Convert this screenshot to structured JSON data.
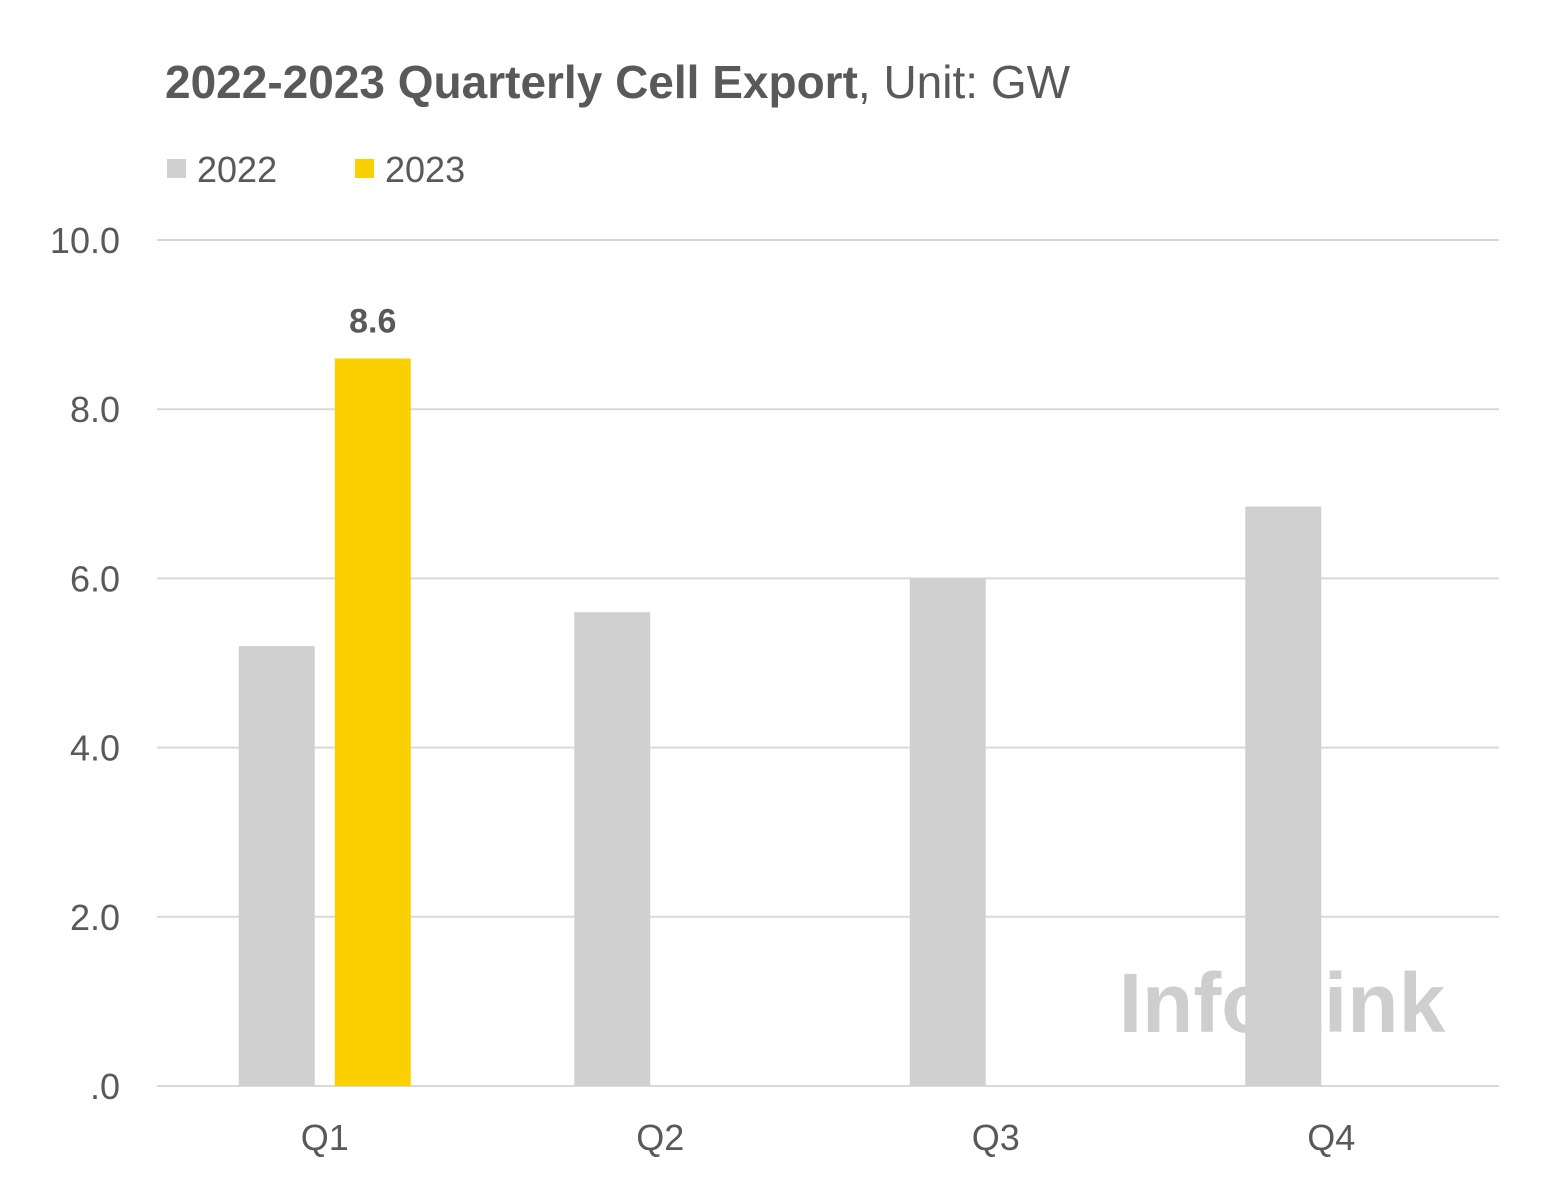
{
  "chart_data": {
    "type": "bar",
    "title_bold": "2022-2023 Quarterly Cell Export",
    "title_rest": ", Unit: GW",
    "categories": [
      "Q1",
      "Q2",
      "Q3",
      "Q4"
    ],
    "series": [
      {
        "name": "2022",
        "color": "#d1d0d1",
        "values": [
          5.2,
          5.6,
          6.0,
          6.85
        ]
      },
      {
        "name": "2023",
        "color": "#fad000",
        "values": [
          8.6,
          null,
          null,
          null
        ]
      }
    ],
    "data_labels": [
      {
        "series": "2023",
        "category": "Q1",
        "text": "8.6"
      }
    ],
    "y_ticks": [
      0,
      2,
      4,
      6,
      8,
      10
    ],
    "y_tick_labels": [
      ".0",
      "2.0",
      "4.0",
      "6.0",
      "8.0",
      "10.0"
    ],
    "ylim": [
      0,
      10
    ],
    "grid": true,
    "legend_position": "top-left",
    "watermark": "InfoLink"
  }
}
